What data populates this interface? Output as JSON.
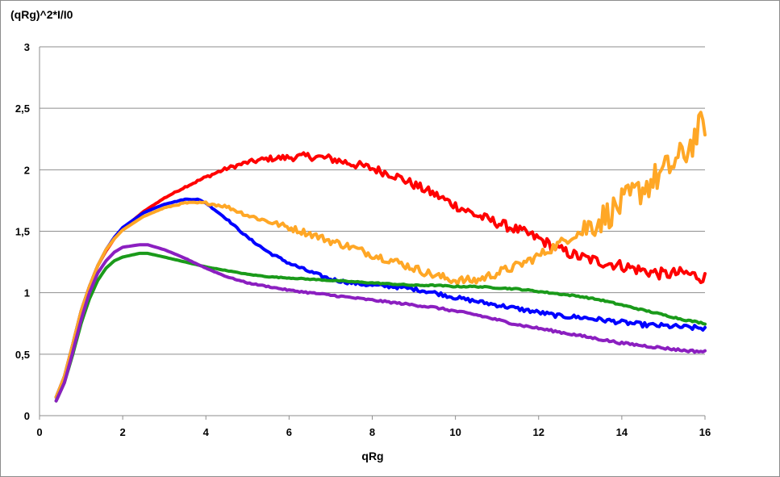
{
  "chart_data": {
    "type": "line",
    "title": "",
    "xlabel": "qRg",
    "ylabel": "(qRg)^2*I/I0",
    "xlim": [
      0,
      16
    ],
    "ylim": [
      0,
      3
    ],
    "x_ticks": [
      0,
      2,
      4,
      6,
      8,
      10,
      12,
      14,
      16
    ],
    "x_tick_labels": [
      "0",
      "2",
      "4",
      "6",
      "8",
      "10",
      "12",
      "14",
      "16"
    ],
    "y_ticks": [
      0,
      0.5,
      1,
      1.5,
      2,
      2.5,
      3
    ],
    "y_tick_labels": [
      "0",
      "0,5",
      "1",
      "1,5",
      "2",
      "2,5",
      "3"
    ],
    "grid": "horizontal",
    "legend": "none",
    "series": [
      {
        "color": "#ff0000",
        "noise": 0.05,
        "points": [
          [
            0.4,
            0.15
          ],
          [
            0.6,
            0.32
          ],
          [
            0.8,
            0.58
          ],
          [
            1.0,
            0.85
          ],
          [
            1.2,
            1.05
          ],
          [
            1.4,
            1.22
          ],
          [
            1.6,
            1.34
          ],
          [
            1.8,
            1.44
          ],
          [
            2.0,
            1.52
          ],
          [
            2.5,
            1.66
          ],
          [
            3.0,
            1.77
          ],
          [
            3.5,
            1.86
          ],
          [
            4.0,
            1.94
          ],
          [
            4.5,
            2.01
          ],
          [
            5.0,
            2.06
          ],
          [
            5.5,
            2.09
          ],
          [
            6.0,
            2.1
          ],
          [
            6.5,
            2.11
          ],
          [
            7.0,
            2.09
          ],
          [
            7.5,
            2.05
          ],
          [
            8.0,
            2.01
          ],
          [
            8.5,
            1.96
          ],
          [
            9.0,
            1.88
          ],
          [
            9.5,
            1.8
          ],
          [
            10.0,
            1.71
          ],
          [
            10.5,
            1.63
          ],
          [
            11.0,
            1.57
          ],
          [
            11.5,
            1.51
          ],
          [
            12.0,
            1.44
          ],
          [
            12.5,
            1.35
          ],
          [
            13.0,
            1.29
          ],
          [
            13.5,
            1.25
          ],
          [
            14.0,
            1.22
          ],
          [
            14.5,
            1.18
          ],
          [
            15.0,
            1.15
          ],
          [
            15.5,
            1.16
          ],
          [
            16.0,
            1.12
          ]
        ]
      },
      {
        "color": "#0000ff",
        "noise": 0.02,
        "points": [
          [
            0.4,
            0.15
          ],
          [
            0.6,
            0.32
          ],
          [
            0.8,
            0.58
          ],
          [
            1.0,
            0.85
          ],
          [
            1.2,
            1.05
          ],
          [
            1.4,
            1.22
          ],
          [
            1.6,
            1.35
          ],
          [
            1.8,
            1.45
          ],
          [
            2.0,
            1.53
          ],
          [
            2.5,
            1.65
          ],
          [
            3.0,
            1.72
          ],
          [
            3.5,
            1.76
          ],
          [
            3.8,
            1.76
          ],
          [
            4.0,
            1.73
          ],
          [
            4.5,
            1.6
          ],
          [
            5.0,
            1.45
          ],
          [
            5.5,
            1.33
          ],
          [
            6.0,
            1.24
          ],
          [
            6.5,
            1.17
          ],
          [
            7.0,
            1.11
          ],
          [
            7.5,
            1.08
          ],
          [
            8.0,
            1.06
          ],
          [
            8.5,
            1.05
          ],
          [
            9.0,
            1.03
          ],
          [
            9.5,
            1.0
          ],
          [
            10.0,
            0.96
          ],
          [
            10.5,
            0.93
          ],
          [
            11.0,
            0.9
          ],
          [
            11.5,
            0.87
          ],
          [
            12.0,
            0.84
          ],
          [
            12.5,
            0.81
          ],
          [
            13.0,
            0.8
          ],
          [
            13.5,
            0.78
          ],
          [
            14.0,
            0.76
          ],
          [
            14.5,
            0.74
          ],
          [
            15.0,
            0.73
          ],
          [
            15.5,
            0.72
          ],
          [
            16.0,
            0.71
          ]
        ]
      },
      {
        "color": "#ffa726",
        "noise": 0.045,
        "points": [
          [
            0.4,
            0.15
          ],
          [
            0.6,
            0.32
          ],
          [
            0.8,
            0.58
          ],
          [
            1.0,
            0.85
          ],
          [
            1.2,
            1.05
          ],
          [
            1.4,
            1.22
          ],
          [
            1.6,
            1.35
          ],
          [
            1.8,
            1.44
          ],
          [
            2.0,
            1.51
          ],
          [
            2.5,
            1.62
          ],
          [
            3.0,
            1.69
          ],
          [
            3.5,
            1.73
          ],
          [
            4.0,
            1.73
          ],
          [
            4.5,
            1.7
          ],
          [
            5.0,
            1.63
          ],
          [
            5.5,
            1.58
          ],
          [
            6.0,
            1.53
          ],
          [
            6.5,
            1.48
          ],
          [
            7.0,
            1.42
          ],
          [
            7.5,
            1.37
          ],
          [
            8.0,
            1.31
          ],
          [
            8.5,
            1.26
          ],
          [
            9.0,
            1.2
          ],
          [
            9.5,
            1.14
          ],
          [
            10.0,
            1.1
          ],
          [
            10.5,
            1.1
          ],
          [
            11.0,
            1.16
          ],
          [
            11.5,
            1.22
          ],
          [
            12.0,
            1.3
          ],
          [
            12.5,
            1.4
          ],
          [
            13.0,
            1.5
          ],
          [
            13.5,
            1.6
          ],
          [
            14.0,
            1.72
          ],
          [
            14.5,
            1.85
          ],
          [
            15.0,
            1.98
          ],
          [
            15.5,
            2.12
          ],
          [
            16.0,
            2.4
          ]
        ]
      },
      {
        "color": "#1a9a1a",
        "noise": 0.006,
        "points": [
          [
            0.4,
            0.12
          ],
          [
            0.6,
            0.27
          ],
          [
            0.8,
            0.5
          ],
          [
            1.0,
            0.75
          ],
          [
            1.2,
            0.95
          ],
          [
            1.4,
            1.1
          ],
          [
            1.6,
            1.2
          ],
          [
            1.8,
            1.26
          ],
          [
            2.0,
            1.29
          ],
          [
            2.4,
            1.32
          ],
          [
            2.6,
            1.32
          ],
          [
            3.0,
            1.29
          ],
          [
            3.5,
            1.25
          ],
          [
            4.0,
            1.21
          ],
          [
            4.5,
            1.18
          ],
          [
            5.0,
            1.15
          ],
          [
            5.5,
            1.13
          ],
          [
            6.0,
            1.12
          ],
          [
            6.5,
            1.11
          ],
          [
            7.0,
            1.1
          ],
          [
            7.5,
            1.09
          ],
          [
            8.0,
            1.08
          ],
          [
            8.5,
            1.07
          ],
          [
            9.0,
            1.06
          ],
          [
            9.5,
            1.06
          ],
          [
            10.0,
            1.05
          ],
          [
            10.5,
            1.05
          ],
          [
            11.0,
            1.04
          ],
          [
            11.5,
            1.03
          ],
          [
            12.0,
            1.01
          ],
          [
            12.5,
            0.99
          ],
          [
            13.0,
            0.97
          ],
          [
            13.5,
            0.94
          ],
          [
            14.0,
            0.9
          ],
          [
            14.5,
            0.86
          ],
          [
            15.0,
            0.82
          ],
          [
            15.5,
            0.78
          ],
          [
            16.0,
            0.75
          ]
        ]
      },
      {
        "color": "#8b1fc0",
        "noise": 0.01,
        "points": [
          [
            0.4,
            0.12
          ],
          [
            0.6,
            0.27
          ],
          [
            0.8,
            0.52
          ],
          [
            1.0,
            0.78
          ],
          [
            1.2,
            1.0
          ],
          [
            1.4,
            1.16
          ],
          [
            1.6,
            1.26
          ],
          [
            1.8,
            1.33
          ],
          [
            2.0,
            1.37
          ],
          [
            2.4,
            1.39
          ],
          [
            2.6,
            1.39
          ],
          [
            3.0,
            1.35
          ],
          [
            3.5,
            1.28
          ],
          [
            4.0,
            1.2
          ],
          [
            4.5,
            1.13
          ],
          [
            5.0,
            1.08
          ],
          [
            5.5,
            1.05
          ],
          [
            6.0,
            1.02
          ],
          [
            6.5,
            1.0
          ],
          [
            7.0,
            0.98
          ],
          [
            7.5,
            0.96
          ],
          [
            8.0,
            0.94
          ],
          [
            8.5,
            0.92
          ],
          [
            9.0,
            0.9
          ],
          [
            9.5,
            0.88
          ],
          [
            10.0,
            0.85
          ],
          [
            10.5,
            0.82
          ],
          [
            11.0,
            0.78
          ],
          [
            11.5,
            0.74
          ],
          [
            12.0,
            0.71
          ],
          [
            12.5,
            0.68
          ],
          [
            13.0,
            0.65
          ],
          [
            13.5,
            0.62
          ],
          [
            14.0,
            0.59
          ],
          [
            14.5,
            0.57
          ],
          [
            15.0,
            0.55
          ],
          [
            15.5,
            0.53
          ],
          [
            16.0,
            0.52
          ]
        ]
      }
    ]
  }
}
